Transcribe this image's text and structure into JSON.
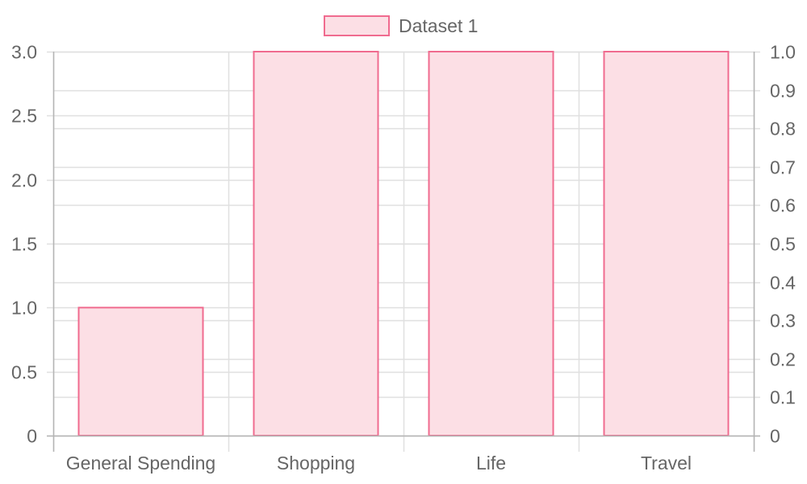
{
  "chart_data": {
    "type": "bar",
    "categories": [
      "General Spending",
      "Shopping",
      "Life",
      "Travel"
    ],
    "series": [
      {
        "name": "Dataset 1",
        "values": [
          1,
          3,
          3,
          3
        ],
        "fill_color": "#fcdfe5",
        "border_color": "#f06b8f"
      }
    ],
    "y_left": {
      "ylim": [
        0,
        3
      ],
      "ticks": [
        "0",
        "0.5",
        "1.0",
        "1.5",
        "2.0",
        "2.5",
        "3.0"
      ]
    },
    "y_right": {
      "ylim": [
        0,
        1
      ],
      "ticks": [
        "0",
        "0.1",
        "0.2",
        "0.3",
        "0.4",
        "0.5",
        "0.6",
        "0.7",
        "0.8",
        "0.9",
        "1.0"
      ]
    },
    "grid": true,
    "legend": "top-center",
    "title": "",
    "xlabel": "",
    "ylabel": ""
  },
  "colors": {
    "grid": "#e0e0e0",
    "axis": "#b4b4b4",
    "tick_text": "#666666"
  }
}
